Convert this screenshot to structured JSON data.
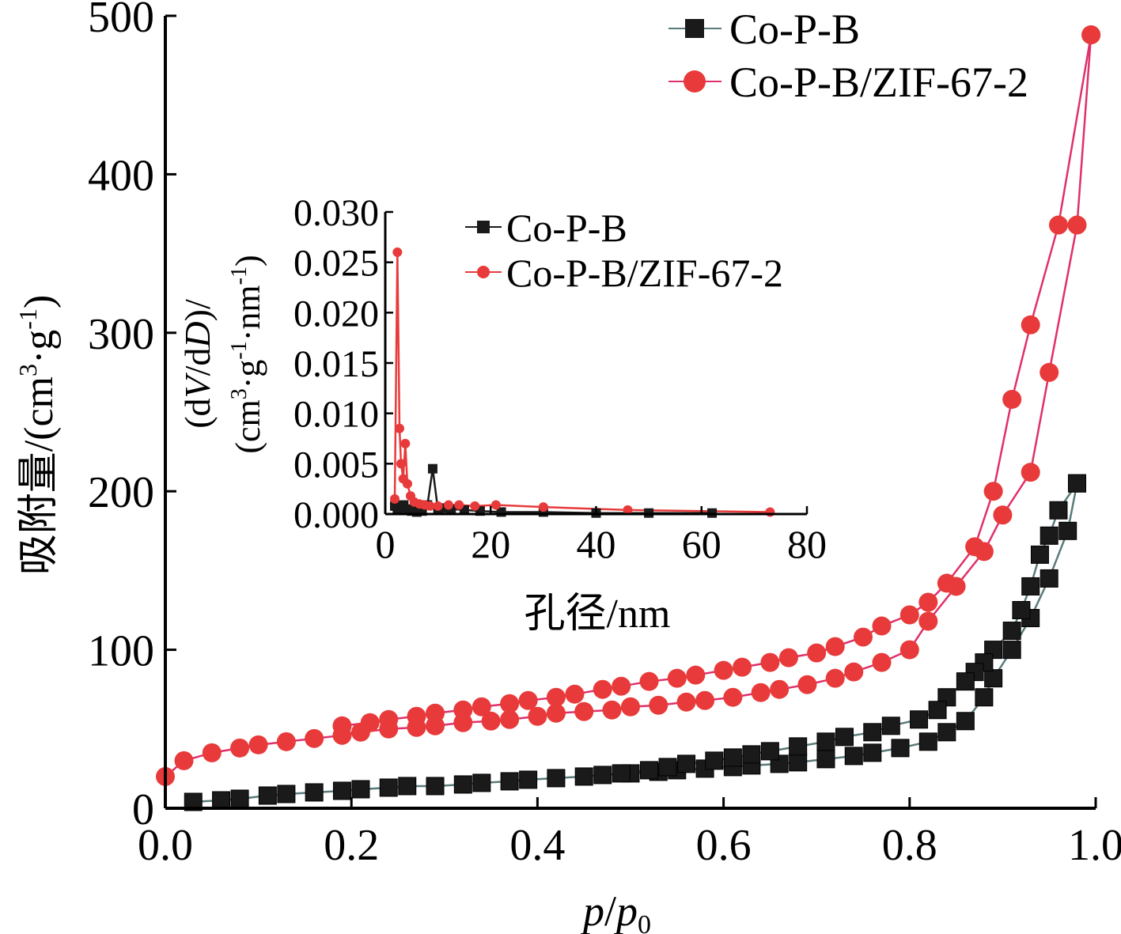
{
  "chart_data": [
    {
      "type": "line",
      "role": "main",
      "xlabel": {
        "italic": "p",
        "mid": "/",
        "italic2": "p",
        "sub": "0"
      },
      "ylabel": {
        "prefix": "吸附量/(cm",
        "sup1": "3",
        "mid": "·g",
        "sup2": "-1",
        "suffix": ")"
      },
      "xlim": [
        0.0,
        1.0
      ],
      "ylim": [
        0,
        500
      ],
      "xticks": [
        "0.0",
        "0.2",
        "0.4",
        "0.6",
        "0.8",
        "1.0"
      ],
      "xtick_values": [
        0.0,
        0.2,
        0.4,
        0.6,
        0.8,
        1.0
      ],
      "yticks": [
        "0",
        "100",
        "200",
        "300",
        "400",
        "500"
      ],
      "ytick_values": [
        0,
        100,
        200,
        300,
        400,
        500
      ],
      "legend_position": "top-right",
      "series": [
        {
          "name": "Co-P-B",
          "color": "#1a1a1a",
          "line_color": "#5a7a7a",
          "marker": "square",
          "adsorption": {
            "x": [
              0.03,
              0.06,
              0.08,
              0.11,
              0.13,
              0.16,
              0.19,
              0.21,
              0.24,
              0.26,
              0.29,
              0.32,
              0.34,
              0.37,
              0.39,
              0.42,
              0.45,
              0.47,
              0.5,
              0.53,
              0.55,
              0.58,
              0.61,
              0.63,
              0.66,
              0.68,
              0.71,
              0.74,
              0.76,
              0.79,
              0.82,
              0.84,
              0.86,
              0.88,
              0.89,
              0.91,
              0.93,
              0.95,
              0.97,
              0.98
            ],
            "y": [
              4,
              5,
              6,
              8,
              9,
              10,
              11,
              12,
              13,
              14,
              14,
              15,
              16,
              17,
              18,
              19,
              20,
              21,
              22,
              23,
              24,
              25,
              26,
              27,
              28,
              29,
              31,
              33,
              35,
              38,
              42,
              48,
              55,
              70,
              82,
              100,
              120,
              145,
              175,
              205
            ]
          },
          "desorption": {
            "x": [
              0.98,
              0.96,
              0.95,
              0.94,
              0.93,
              0.92,
              0.91,
              0.89,
              0.88,
              0.87,
              0.86,
              0.84,
              0.83,
              0.81,
              0.78,
              0.76,
              0.73,
              0.71,
              0.68,
              0.65,
              0.63,
              0.61,
              0.59,
              0.56,
              0.54,
              0.52,
              0.49
            ],
            "y": [
              205,
              188,
              172,
              160,
              140,
              125,
              112,
              100,
              92,
              86,
              80,
              70,
              62,
              56,
              52,
              48,
              45,
              42,
              39,
              36,
              34,
              32,
              30,
              28,
              26,
              24,
              22
            ]
          }
        },
        {
          "name": "Co-P-B/ZIF-67-2",
          "color": "#e83a3a",
          "line_color": "#e0306a",
          "marker": "circle",
          "adsorption": {
            "x": [
              0.0,
              0.02,
              0.05,
              0.08,
              0.1,
              0.13,
              0.16,
              0.19,
              0.21,
              0.24,
              0.27,
              0.29,
              0.32,
              0.35,
              0.37,
              0.4,
              0.42,
              0.45,
              0.48,
              0.5,
              0.53,
              0.56,
              0.58,
              0.61,
              0.64,
              0.66,
              0.69,
              0.72,
              0.74,
              0.77,
              0.8,
              0.82,
              0.85,
              0.88,
              0.9,
              0.93,
              0.95,
              0.98,
              0.995
            ],
            "y": [
              20,
              30,
              35,
              38,
              40,
              42,
              44,
              46,
              48,
              50,
              51,
              52,
              54,
              55,
              56,
              58,
              60,
              61,
              62,
              64,
              65,
              67,
              68,
              70,
              73,
              75,
              78,
              82,
              86,
              92,
              100,
              118,
              140,
              162,
              185,
              212,
              275,
              368,
              488
            ]
          },
          "desorption": {
            "x": [
              0.995,
              0.96,
              0.93,
              0.91,
              0.89,
              0.87,
              0.84,
              0.82,
              0.8,
              0.77,
              0.75,
              0.72,
              0.7,
              0.67,
              0.65,
              0.62,
              0.6,
              0.57,
              0.55,
              0.52,
              0.49,
              0.47,
              0.44,
              0.42,
              0.39,
              0.37,
              0.34,
              0.32,
              0.29,
              0.27,
              0.24,
              0.22,
              0.19
            ],
            "y": [
              488,
              368,
              305,
              258,
              200,
              165,
              142,
              130,
              122,
              115,
              108,
              102,
              98,
              95,
              92,
              89,
              87,
              84,
              82,
              80,
              77,
              75,
              72,
              70,
              68,
              66,
              64,
              62,
              60,
              58,
              56,
              54,
              52
            ]
          }
        }
      ]
    },
    {
      "type": "line",
      "role": "inset",
      "xlabel": "孔径/nm",
      "ylabel": {
        "line1_prefix": "(d",
        "line1_italic": "V",
        "line1_mid": "/d",
        "line1_italic2": "D",
        "line1_suffix": ")/",
        "line2_prefix": "(cm",
        "line2_sup1": "3",
        "line2_mid": "·g",
        "line2_sup2": "-1",
        "line2_mid2": "·nm",
        "line2_sup3": "-1",
        "line2_suffix": ")"
      },
      "xlim": [
        0,
        80
      ],
      "ylim": [
        0.0,
        0.03
      ],
      "xticks": [
        "0",
        "20",
        "40",
        "60",
        "80"
      ],
      "xtick_values": [
        0,
        20,
        40,
        60,
        80
      ],
      "yticks": [
        "0.000",
        "0.005",
        "0.010",
        "0.015",
        "0.020",
        "0.025",
        "0.030"
      ],
      "ytick_values": [
        0.0,
        0.005,
        0.01,
        0.015,
        0.02,
        0.025,
        0.03
      ],
      "legend_position": "top-center",
      "series": [
        {
          "name": "Co-P-B",
          "color": "#1a1a1a",
          "marker": "square",
          "x": [
            1.8,
            2.3,
            2.8,
            3.5,
            4.2,
            5.0,
            6.0,
            7.0,
            8.0,
            9.0,
            10.0,
            11.0,
            12.5,
            15.0,
            18.0,
            22.0,
            30.0,
            40.0,
            50.0,
            62.0
          ],
          "y": [
            0.0008,
            0.0004,
            0.0006,
            0.0009,
            0.0005,
            0.0003,
            0.0002,
            0.0003,
            0.0009,
            0.0045,
            0.0004,
            0.0006,
            0.0005,
            0.0004,
            0.0003,
            0.0002,
            0.0002,
            0.0001,
            0.0001,
            0.0001
          ]
        },
        {
          "name": "Co-P-B/ZIF-67-2",
          "color": "#e83a3a",
          "marker": "circle",
          "x": [
            1.8,
            2.3,
            2.7,
            3.0,
            3.4,
            3.8,
            4.2,
            4.8,
            5.5,
            6.5,
            7.5,
            8.5,
            10.0,
            12.0,
            14.0,
            17.0,
            21.0,
            30.0,
            46.0,
            73.0
          ],
          "y": [
            0.0015,
            0.026,
            0.0085,
            0.005,
            0.0035,
            0.007,
            0.003,
            0.0018,
            0.0012,
            0.001,
            0.0009,
            0.0008,
            0.0008,
            0.0009,
            0.0009,
            0.0008,
            0.0009,
            0.0007,
            0.0004,
            0.0002
          ]
        }
      ]
    }
  ]
}
